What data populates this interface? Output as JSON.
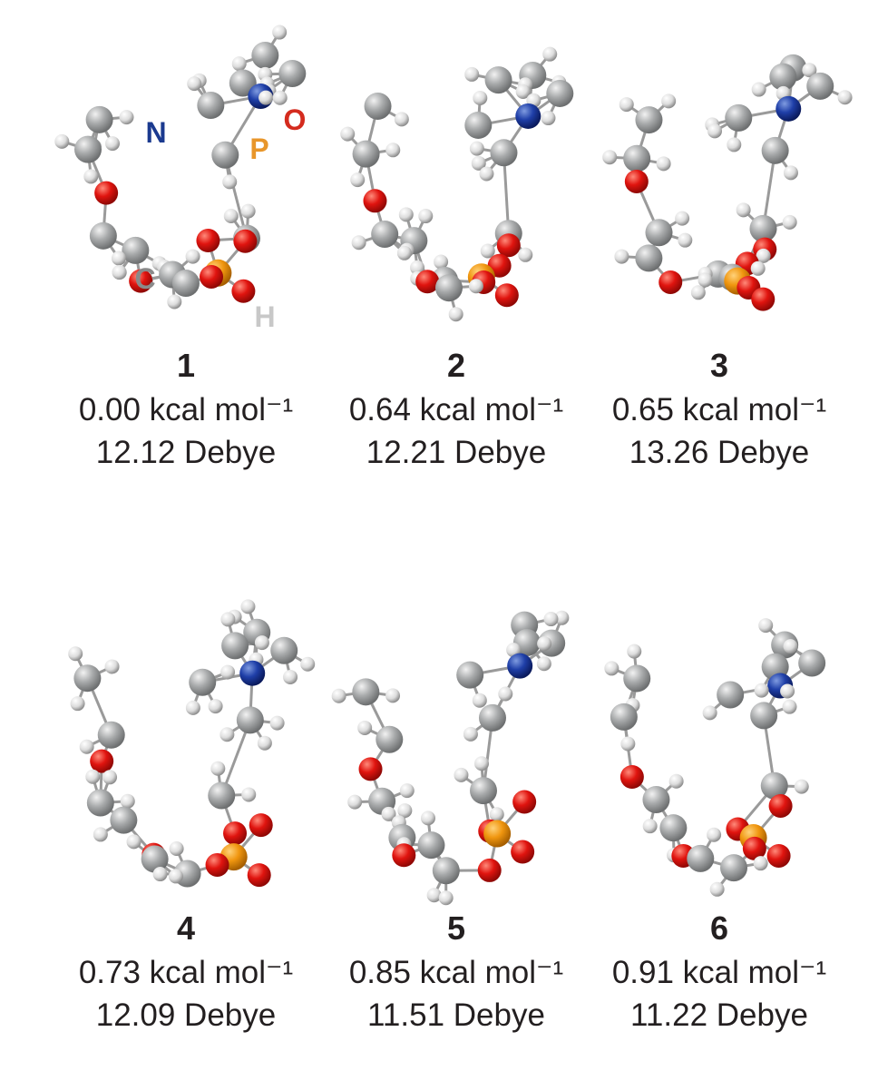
{
  "atom_labels": [
    "N",
    "P",
    "O",
    "C",
    "H"
  ],
  "conformers": [
    {
      "label": "1",
      "energy": "0.00 kcal mol⁻¹",
      "dipole": "12.12 Debye"
    },
    {
      "label": "2",
      "energy": "0.64 kcal mol⁻¹",
      "dipole": "12.21 Debye"
    },
    {
      "label": "3",
      "energy": "0.65 kcal mol⁻¹",
      "dipole": "13.26 Debye"
    },
    {
      "label": "4",
      "energy": "0.73 kcal mol⁻¹",
      "dipole": "12.09 Debye"
    },
    {
      "label": "5",
      "energy": "0.85 kcal mol⁻¹",
      "dipole": "11.51 Debye"
    },
    {
      "label": "6",
      "energy": "0.91 kcal mol⁻¹",
      "dipole": "11.22 Debye"
    }
  ]
}
